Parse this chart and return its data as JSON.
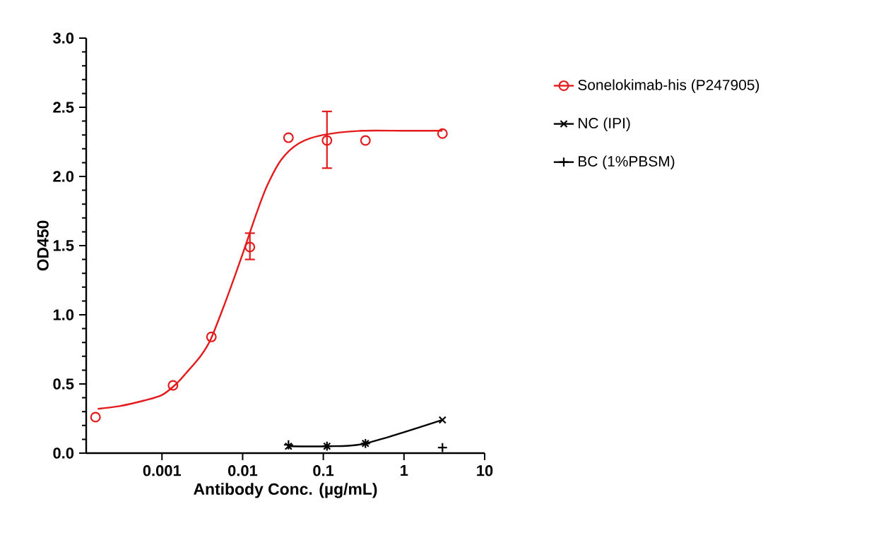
{
  "chart_data": {
    "type": "scatter",
    "xlabel": "Antibody Conc. (µg/mL)",
    "ylabel": "OD450",
    "log": "x",
    "xlim": [
      0.000115,
      10
    ],
    "ylim": [
      0,
      3
    ],
    "xticks": [
      0.001,
      0.01,
      0.1,
      1,
      10
    ],
    "yticks": [
      {
        "value": 0,
        "label": "0.0"
      },
      {
        "value": 0.5,
        "label": "0.5"
      },
      {
        "value": 1,
        "label": "1.0"
      },
      {
        "value": 1.5,
        "label": "1.5"
      },
      {
        "value": 2,
        "label": "2.0"
      },
      {
        "value": 2.5,
        "label": "2.5"
      },
      {
        "value": 3,
        "label": "3.0"
      }
    ],
    "legend": "right",
    "grid": false,
    "series": [
      {
        "name": "Sonelokimab-his (P247905)",
        "marker": "circle",
        "color": "#e41a1c",
        "x": [
          0.00015,
          0.00137,
          0.0041,
          0.0123,
          0.037,
          0.111,
          0.333,
          3
        ],
        "values": [
          0.26,
          0.49,
          0.84,
          1.49,
          2.28,
          2.26,
          2.26,
          2.31
        ],
        "errors": [
          null,
          null,
          null,
          [
            1.4,
            1.59
          ],
          null,
          [
            2.06,
            2.47
          ],
          null,
          null
        ]
      },
      {
        "type": "line",
        "marker": "none",
        "color": "#e41a1c",
        "x": [
          0.00016,
          0.0003,
          0.0006,
          0.001,
          0.0015,
          0.002,
          0.003,
          0.004,
          0.006,
          0.008,
          0.01,
          0.015,
          0.02,
          0.03,
          0.05,
          0.1,
          0.3,
          1,
          3
        ],
        "values": [
          0.32,
          0.34,
          0.38,
          0.42,
          0.5,
          0.58,
          0.7,
          0.82,
          1.08,
          1.28,
          1.44,
          1.74,
          1.93,
          2.12,
          2.24,
          2.3,
          2.33,
          2.33,
          2.33
        ]
      },
      {
        "name": "NC (IPI)",
        "type": "line",
        "marker": "cross",
        "color": "#000000",
        "x": [
          0.037,
          0.111,
          0.333,
          3
        ],
        "values": [
          0.05,
          0.05,
          0.07,
          0.24
        ]
      },
      {
        "name": "BC (1%PBSM)",
        "marker": "plus",
        "color": "#000000",
        "x": [
          0.037,
          0.111,
          0.333,
          3
        ],
        "values": [
          0.06,
          0.05,
          0.07,
          0.04
        ]
      }
    ]
  }
}
